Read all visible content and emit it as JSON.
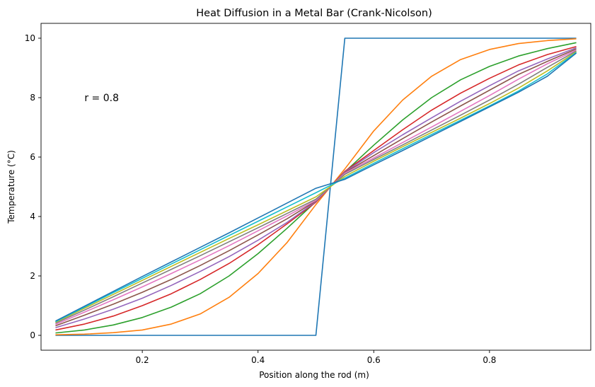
{
  "chart_data": {
    "type": "line",
    "title": "Heat Diffusion in a Metal Bar (Crank-Nicolson)",
    "xlabel": "Position along the rod (m)",
    "ylabel": "Temperature (°C)",
    "xlim": [
      0.025,
      0.975
    ],
    "ylim": [
      -0.5,
      10.5
    ],
    "xticks": [
      0.2,
      0.4,
      0.6,
      0.8
    ],
    "xtick_labels": [
      "0.2",
      "0.4",
      "0.6",
      "0.8"
    ],
    "yticks": [
      0,
      2,
      4,
      6,
      8,
      10
    ],
    "ytick_labels": [
      "0",
      "2",
      "4",
      "6",
      "8",
      "10"
    ],
    "grid": false,
    "annotation": {
      "text": "r = 0.8",
      "x": 0.1,
      "y": 8.0
    },
    "x": [
      0.05,
      0.1,
      0.15,
      0.2,
      0.25,
      0.3,
      0.35,
      0.4,
      0.45,
      0.5,
      0.55,
      0.6,
      0.65,
      0.7,
      0.75,
      0.8,
      0.85,
      0.9,
      0.95
    ],
    "series": [
      {
        "color": "#1f77b4",
        "values": [
          0,
          0,
          0,
          0,
          0,
          0,
          0,
          0,
          0,
          0,
          10,
          10,
          10,
          10,
          10,
          10,
          10,
          10,
          10
        ]
      },
      {
        "color": "#ff7f0e",
        "values": [
          0.02,
          0.04,
          0.09,
          0.18,
          0.38,
          0.72,
          1.28,
          2.08,
          3.12,
          4.4,
          5.6,
          6.88,
          7.92,
          8.72,
          9.28,
          9.62,
          9.82,
          9.92,
          9.98
        ]
      },
      {
        "color": "#2ca02c",
        "values": [
          0.08,
          0.18,
          0.35,
          0.6,
          0.95,
          1.4,
          2.0,
          2.75,
          3.6,
          4.5,
          5.5,
          6.4,
          7.25,
          8.0,
          8.6,
          9.05,
          9.4,
          9.65,
          9.85
        ]
      },
      {
        "color": "#d62728",
        "values": [
          0.18,
          0.38,
          0.65,
          1.0,
          1.4,
          1.88,
          2.42,
          3.05,
          3.75,
          4.48,
          5.52,
          6.22,
          6.92,
          7.58,
          8.15,
          8.65,
          9.1,
          9.45,
          9.72
        ]
      },
      {
        "color": "#9467bd",
        "values": [
          0.26,
          0.55,
          0.88,
          1.25,
          1.68,
          2.15,
          2.65,
          3.2,
          3.8,
          4.5,
          5.5,
          6.15,
          6.75,
          7.32,
          7.88,
          8.4,
          8.9,
          9.3,
          9.68
        ]
      },
      {
        "color": "#8c564b",
        "values": [
          0.32,
          0.68,
          1.05,
          1.45,
          1.88,
          2.35,
          2.85,
          3.38,
          3.92,
          4.52,
          5.48,
          6.05,
          6.62,
          7.18,
          7.72,
          8.25,
          8.78,
          9.22,
          9.64
        ]
      },
      {
        "color": "#e377c2",
        "values": [
          0.37,
          0.78,
          1.2,
          1.63,
          2.08,
          2.54,
          3.02,
          3.52,
          4.02,
          4.54,
          5.46,
          5.97,
          6.49,
          7.01,
          7.54,
          8.07,
          8.62,
          9.14,
          9.6
        ]
      },
      {
        "color": "#7f7f7f",
        "values": [
          0.41,
          0.85,
          1.3,
          1.76,
          2.22,
          2.68,
          3.15,
          3.62,
          4.1,
          4.58,
          5.42,
          5.92,
          6.41,
          6.91,
          7.41,
          7.92,
          8.45,
          9.02,
          9.57
        ]
      },
      {
        "color": "#bcbd22",
        "values": [
          0.44,
          0.91,
          1.38,
          1.85,
          2.32,
          2.79,
          3.26,
          3.72,
          4.19,
          4.66,
          5.35,
          5.86,
          6.35,
          6.83,
          7.31,
          7.8,
          8.32,
          8.9,
          9.54
        ]
      },
      {
        "color": "#17becf",
        "values": [
          0.46,
          0.95,
          1.44,
          1.92,
          2.4,
          2.88,
          3.36,
          3.84,
          4.32,
          4.8,
          5.29,
          5.79,
          6.28,
          6.76,
          7.24,
          7.72,
          8.22,
          8.8,
          9.52
        ]
      },
      {
        "color": "#1f77b4",
        "values": [
          0.48,
          0.98,
          1.48,
          1.98,
          2.47,
          2.96,
          3.45,
          3.95,
          4.45,
          4.95,
          5.25,
          5.74,
          6.22,
          6.71,
          7.2,
          7.69,
          8.18,
          8.72,
          9.5
        ]
      }
    ]
  }
}
